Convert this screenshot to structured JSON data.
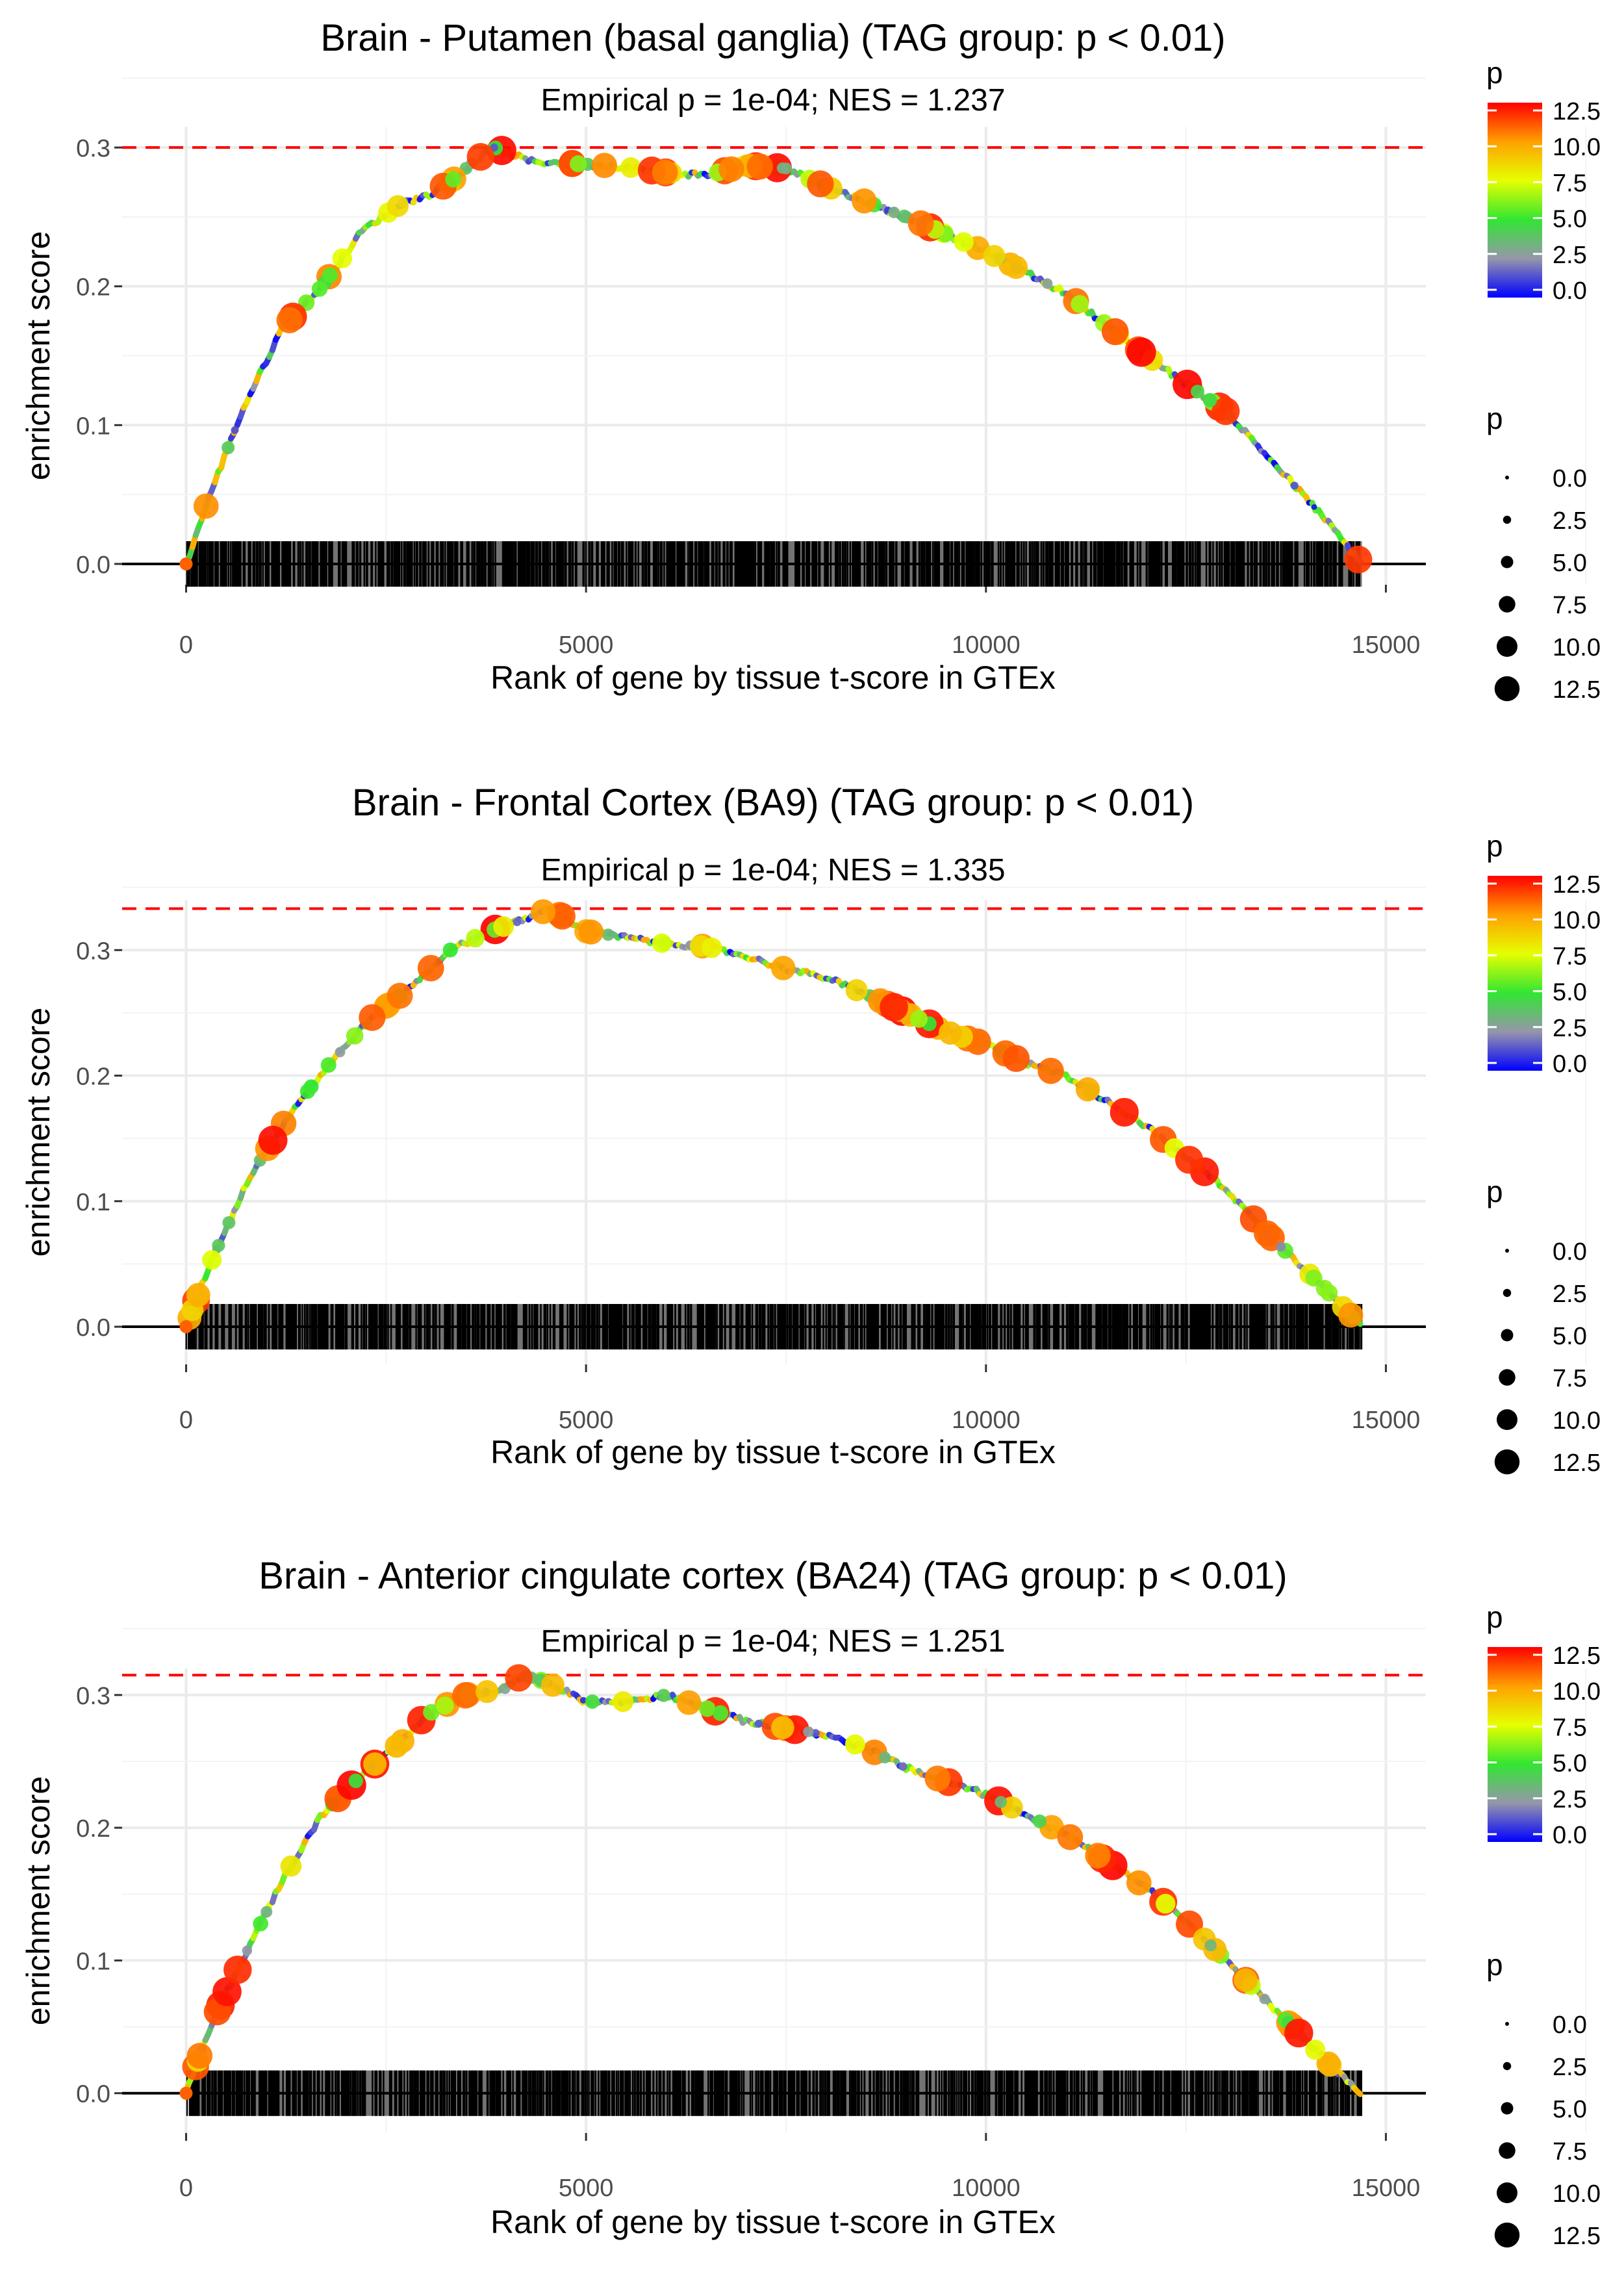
{
  "chart_data": [
    {
      "type": "line",
      "title": "Brain - Putamen (basal ganglia) (TAG group: p < 0.01)",
      "subtitle": "Empirical p = 1e-04; NES = 1.237",
      "xlabel": "Rank of gene by tissue t-score in GTEx",
      "ylabel": "enrichment score",
      "xlim": [
        -800,
        15500
      ],
      "ylim": [
        -0.015,
        0.315
      ],
      "x_ticks": [
        0,
        5000,
        10000,
        15000
      ],
      "x_tick_labels": [
        "0",
        "5000",
        "10000",
        "15000"
      ],
      "y_ticks": [
        0.0,
        0.1,
        0.2,
        0.3
      ],
      "y_tick_labels": [
        "0.0",
        "0.1",
        "0.2",
        "0.3"
      ],
      "max_es": 0.3,
      "grid": true,
      "n_genes": 14700,
      "curve_points": [
        [
          0,
          0
        ],
        [
          300,
          0.05
        ],
        [
          700,
          0.11
        ],
        [
          1200,
          0.17
        ],
        [
          1700,
          0.2
        ],
        [
          2200,
          0.24
        ],
        [
          2700,
          0.26
        ],
        [
          3000,
          0.265
        ],
        [
          3300,
          0.275
        ],
        [
          3600,
          0.29
        ],
        [
          3850,
          0.3
        ],
        [
          4300,
          0.29
        ],
        [
          5000,
          0.288
        ],
        [
          5500,
          0.286
        ],
        [
          6000,
          0.282
        ],
        [
          6500,
          0.28
        ],
        [
          7000,
          0.287
        ],
        [
          7500,
          0.285
        ],
        [
          8000,
          0.272
        ],
        [
          9000,
          0.25
        ],
        [
          10000,
          0.225
        ],
        [
          11000,
          0.195
        ],
        [
          12000,
          0.15
        ],
        [
          13000,
          0.11
        ],
        [
          13800,
          0.06
        ],
        [
          14200,
          0.035
        ],
        [
          14700,
          0
        ]
      ],
      "legend_title": "p",
      "colorbar_labels": [
        "12.5",
        "10.0",
        "7.5",
        "5.0",
        "2.5",
        "0.0"
      ],
      "size_legend_title": "p",
      "size_legend_labels": [
        "0.0",
        "2.5",
        "5.0",
        "7.5",
        "10.0",
        "12.5"
      ],
      "legend_position": "right"
    },
    {
      "type": "line",
      "title": "Brain - Frontal Cortex (BA9) (TAG group: p < 0.01)",
      "subtitle": "Empirical p = 1e-04; NES = 1.335",
      "xlabel": "Rank of gene by tissue t-score in GTEx",
      "ylabel": "enrichment score",
      "xlim": [
        -800,
        15500
      ],
      "ylim": [
        -0.03,
        0.34
      ],
      "x_ticks": [
        0,
        5000,
        10000,
        15000
      ],
      "x_tick_labels": [
        "0",
        "5000",
        "10000",
        "15000"
      ],
      "y_ticks": [
        0.0,
        0.1,
        0.2,
        0.3
      ],
      "y_tick_labels": [
        "0.0",
        "0.1",
        "0.2",
        "0.3"
      ],
      "max_es": 0.333,
      "grid": true,
      "n_genes": 14700,
      "curve_points": [
        [
          0,
          0
        ],
        [
          300,
          0.05
        ],
        [
          800,
          0.12
        ],
        [
          1300,
          0.17
        ],
        [
          1800,
          0.21
        ],
        [
          2300,
          0.245
        ],
        [
          2800,
          0.27
        ],
        [
          3300,
          0.3
        ],
        [
          3800,
          0.315
        ],
        [
          4300,
          0.326
        ],
        [
          4550,
          0.333
        ],
        [
          5000,
          0.315
        ],
        [
          5500,
          0.31
        ],
        [
          6000,
          0.305
        ],
        [
          6500,
          0.303
        ],
        [
          7000,
          0.295
        ],
        [
          7500,
          0.285
        ],
        [
          8000,
          0.278
        ],
        [
          8500,
          0.265
        ],
        [
          9000,
          0.25
        ],
        [
          9500,
          0.235
        ],
        [
          10000,
          0.225
        ],
        [
          10500,
          0.21
        ],
        [
          11000,
          0.2
        ],
        [
          11500,
          0.18
        ],
        [
          12000,
          0.16
        ],
        [
          12500,
          0.135
        ],
        [
          13000,
          0.11
        ],
        [
          13500,
          0.075
        ],
        [
          14000,
          0.045
        ],
        [
          14400,
          0.02
        ],
        [
          14700,
          0
        ]
      ],
      "legend_title": "p",
      "colorbar_labels": [
        "12.5",
        "10.0",
        "7.5",
        "5.0",
        "2.5",
        "0.0"
      ],
      "size_legend_title": "p",
      "size_legend_labels": [
        "0.0",
        "2.5",
        "5.0",
        "7.5",
        "10.0",
        "12.5"
      ],
      "legend_position": "right"
    },
    {
      "type": "line",
      "title": "Brain - Anterior cingulate cortex (BA24) (TAG group: p < 0.01)",
      "subtitle": "Empirical p = 1e-04; NES = 1.251",
      "xlabel": "Rank of gene by tissue t-score in GTEx",
      "ylabel": "enrichment score",
      "xlim": [
        -800,
        15500
      ],
      "ylim": [
        -0.03,
        0.32
      ],
      "x_ticks": [
        0,
        5000,
        10000,
        15000
      ],
      "x_tick_labels": [
        "0",
        "5000",
        "10000",
        "15000"
      ],
      "y_ticks": [
        0.0,
        0.1,
        0.2,
        0.3
      ],
      "y_tick_labels": [
        "0.0",
        "0.1",
        "0.2",
        "0.3"
      ],
      "max_es": 0.315,
      "grid": true,
      "n_genes": 14700,
      "curve_points": [
        [
          0,
          0
        ],
        [
          300,
          0.05
        ],
        [
          700,
          0.1
        ],
        [
          1200,
          0.16
        ],
        [
          1700,
          0.21
        ],
        [
          2200,
          0.24
        ],
        [
          2700,
          0.265
        ],
        [
          3000,
          0.285
        ],
        [
          3500,
          0.3
        ],
        [
          4000,
          0.305
        ],
        [
          4200,
          0.315
        ],
        [
          4500,
          0.31
        ],
        [
          5000,
          0.295
        ],
        [
          5500,
          0.295
        ],
        [
          6000,
          0.3
        ],
        [
          6500,
          0.29
        ],
        [
          7000,
          0.28
        ],
        [
          7500,
          0.275
        ],
        [
          8000,
          0.27
        ],
        [
          8500,
          0.26
        ],
        [
          9000,
          0.245
        ],
        [
          9500,
          0.235
        ],
        [
          10000,
          0.225
        ],
        [
          10500,
          0.21
        ],
        [
          11000,
          0.195
        ],
        [
          11500,
          0.175
        ],
        [
          12000,
          0.155
        ],
        [
          12500,
          0.13
        ],
        [
          13000,
          0.1
        ],
        [
          13500,
          0.07
        ],
        [
          14000,
          0.04
        ],
        [
          14400,
          0.015
        ],
        [
          14700,
          0
        ]
      ],
      "legend_title": "p",
      "colorbar_labels": [
        "12.5",
        "10.0",
        "7.5",
        "5.0",
        "2.5",
        "0.0"
      ],
      "size_legend_title": "p",
      "size_legend_labels": [
        "0.0",
        "2.5",
        "5.0",
        "7.5",
        "10.0",
        "12.5"
      ],
      "legend_position": "right"
    }
  ]
}
